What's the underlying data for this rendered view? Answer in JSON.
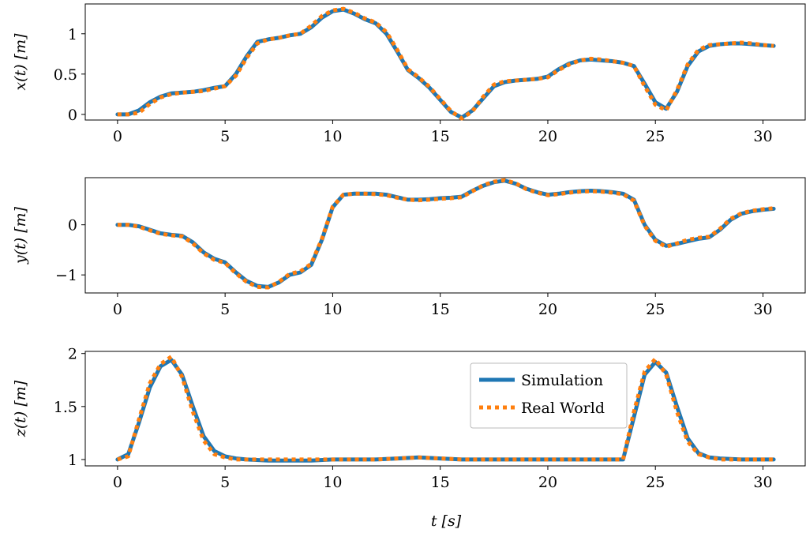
{
  "chart_data": [
    {
      "type": "line",
      "ylabel": "x(t) [m]",
      "xlim": [
        -1.5,
        32
      ],
      "ylim": [
        -0.07,
        1.37
      ],
      "xticks": [
        "0",
        "5",
        "10",
        "15",
        "20",
        "25",
        "30"
      ],
      "yticks": [
        "0",
        "0.5",
        "1"
      ],
      "series": [
        {
          "name": "Simulation",
          "color": "#1f77b4",
          "x": [
            0,
            0.5,
            1,
            1.5,
            2,
            2.5,
            3,
            3.5,
            4,
            4.5,
            5,
            5.5,
            6,
            6.5,
            7,
            7.5,
            8,
            8.5,
            9,
            9.5,
            10,
            10.5,
            11,
            11.5,
            12,
            12.5,
            13,
            13.5,
            14,
            14.5,
            15,
            15.5,
            16,
            16.5,
            17,
            17.5,
            18,
            18.5,
            19,
            19.5,
            20,
            20.5,
            21,
            21.5,
            22,
            22.5,
            23,
            23.5,
            24,
            24.5,
            25,
            25.5,
            26,
            26.5,
            27,
            27.5,
            28,
            28.5,
            29,
            29.5,
            30,
            30.5
          ],
          "values": [
            0,
            0.0,
            0.05,
            0.15,
            0.22,
            0.26,
            0.27,
            0.28,
            0.3,
            0.33,
            0.35,
            0.5,
            0.72,
            0.9,
            0.93,
            0.95,
            0.98,
            1.0,
            1.08,
            1.2,
            1.28,
            1.3,
            1.25,
            1.18,
            1.13,
            1.0,
            0.78,
            0.55,
            0.45,
            0.33,
            0.18,
            0.03,
            -0.04,
            0.05,
            0.2,
            0.35,
            0.4,
            0.42,
            0.43,
            0.44,
            0.47,
            0.56,
            0.63,
            0.67,
            0.68,
            0.67,
            0.66,
            0.64,
            0.6,
            0.38,
            0.15,
            0.07,
            0.28,
            0.6,
            0.78,
            0.85,
            0.87,
            0.88,
            0.88,
            0.87,
            0.86,
            0.85
          ]
        },
        {
          "name": "Real World",
          "color": "#ff7f0e",
          "x": [
            0,
            0.5,
            1,
            1.5,
            2,
            2.5,
            3,
            3.5,
            4,
            4.5,
            5,
            5.5,
            6,
            6.5,
            7,
            7.5,
            8,
            8.5,
            9,
            9.5,
            10,
            10.5,
            11,
            11.5,
            12,
            12.5,
            13,
            13.5,
            14,
            14.5,
            15,
            15.5,
            16,
            16.5,
            17,
            17.5,
            18,
            18.5,
            19,
            19.5,
            20,
            20.5,
            21,
            21.5,
            22,
            22.5,
            23,
            23.5,
            24,
            24.5,
            25,
            25.5,
            26,
            26.5,
            27,
            27.5,
            28,
            28.5,
            29,
            29.5,
            30,
            30.5
          ],
          "values": [
            0,
            0.0,
            0.02,
            0.13,
            0.21,
            0.25,
            0.27,
            0.28,
            0.29,
            0.32,
            0.35,
            0.48,
            0.7,
            0.88,
            0.93,
            0.95,
            0.98,
            1.0,
            1.1,
            1.22,
            1.29,
            1.31,
            1.26,
            1.19,
            1.14,
            1.02,
            0.8,
            0.56,
            0.46,
            0.34,
            0.19,
            0.04,
            -0.05,
            0.04,
            0.22,
            0.37,
            0.41,
            0.42,
            0.43,
            0.44,
            0.46,
            0.55,
            0.62,
            0.67,
            0.69,
            0.68,
            0.66,
            0.64,
            0.6,
            0.35,
            0.12,
            0.05,
            0.3,
            0.62,
            0.8,
            0.86,
            0.87,
            0.88,
            0.89,
            0.88,
            0.86,
            0.85
          ]
        }
      ]
    },
    {
      "type": "line",
      "ylabel": "y(t) [m]",
      "xlim": [
        -1.5,
        32
      ],
      "ylim": [
        -1.36,
        0.94
      ],
      "xticks": [
        "0",
        "5",
        "10",
        "15",
        "20",
        "25",
        "30"
      ],
      "yticks": [
        "−1",
        "0"
      ],
      "yticks_values": [
        -1,
        0
      ],
      "series": [
        {
          "name": "Simulation",
          "color": "#1f77b4",
          "x": [
            0,
            0.5,
            1,
            1.5,
            2,
            2.5,
            3,
            3.5,
            4,
            4.5,
            5,
            5.5,
            6,
            6.5,
            7,
            7.5,
            8,
            8.5,
            9,
            9.5,
            10,
            10.5,
            11,
            11.5,
            12,
            12.5,
            13,
            13.5,
            14,
            14.5,
            15,
            15.5,
            16,
            16.5,
            17,
            17.5,
            18,
            18.5,
            19,
            19.5,
            20,
            20.5,
            21,
            21.5,
            22,
            22.5,
            23,
            23.5,
            24,
            24.5,
            25,
            25.5,
            26,
            26.5,
            27,
            27.5,
            28,
            28.5,
            29,
            29.5,
            30,
            30.5
          ],
          "values": [
            0,
            0.0,
            -0.03,
            -0.1,
            -0.17,
            -0.2,
            -0.22,
            -0.35,
            -0.55,
            -0.68,
            -0.75,
            -0.95,
            -1.12,
            -1.22,
            -1.24,
            -1.15,
            -1.0,
            -0.95,
            -0.8,
            -0.3,
            0.35,
            0.6,
            0.62,
            0.62,
            0.62,
            0.6,
            0.55,
            0.5,
            0.5,
            0.51,
            0.53,
            0.54,
            0.56,
            0.68,
            0.78,
            0.85,
            0.88,
            0.82,
            0.72,
            0.65,
            0.6,
            0.62,
            0.65,
            0.67,
            0.68,
            0.67,
            0.65,
            0.62,
            0.5,
            0.0,
            -0.3,
            -0.42,
            -0.38,
            -0.33,
            -0.28,
            -0.25,
            -0.1,
            0.1,
            0.22,
            0.27,
            0.3,
            0.32
          ]
        },
        {
          "name": "Real World",
          "color": "#ff7f0e",
          "x": [
            0,
            0.5,
            1,
            1.5,
            2,
            2.5,
            3,
            3.5,
            4,
            4.5,
            5,
            5.5,
            6,
            6.5,
            7,
            7.5,
            8,
            8.5,
            9,
            9.5,
            10,
            10.5,
            11,
            11.5,
            12,
            12.5,
            13,
            13.5,
            14,
            14.5,
            15,
            15.5,
            16,
            16.5,
            17,
            17.5,
            18,
            18.5,
            19,
            19.5,
            20,
            20.5,
            21,
            21.5,
            22,
            22.5,
            23,
            23.5,
            24,
            24.5,
            25,
            25.5,
            26,
            26.5,
            27,
            27.5,
            28,
            28.5,
            29,
            29.5,
            30,
            30.5
          ],
          "values": [
            0,
            0.0,
            -0.04,
            -0.11,
            -0.18,
            -0.21,
            -0.23,
            -0.37,
            -0.57,
            -0.7,
            -0.76,
            -0.97,
            -1.14,
            -1.24,
            -1.25,
            -1.14,
            -0.98,
            -0.93,
            -0.78,
            -0.28,
            0.36,
            0.6,
            0.62,
            0.62,
            0.61,
            0.59,
            0.54,
            0.5,
            0.49,
            0.5,
            0.52,
            0.53,
            0.55,
            0.67,
            0.79,
            0.86,
            0.89,
            0.83,
            0.71,
            0.64,
            0.59,
            0.61,
            0.64,
            0.66,
            0.67,
            0.66,
            0.64,
            0.61,
            0.48,
            -0.02,
            -0.32,
            -0.44,
            -0.37,
            -0.3,
            -0.26,
            -0.24,
            -0.08,
            0.12,
            0.23,
            0.28,
            0.31,
            0.33
          ]
        }
      ]
    },
    {
      "type": "line",
      "ylabel": "z(t) [m]",
      "xlabel": "t [s]",
      "xlim": [
        -1.5,
        32
      ],
      "ylim": [
        0.94,
        2.02
      ],
      "xticks": [
        "0",
        "5",
        "10",
        "15",
        "20",
        "25",
        "30"
      ],
      "yticks": [
        "1",
        "1.5",
        "2"
      ],
      "legend": {
        "position": "upper-right",
        "entries": [
          "Simulation",
          "Real World"
        ]
      },
      "series": [
        {
          "name": "Simulation",
          "color": "#1f77b4",
          "x": [
            0,
            0.5,
            1,
            1.5,
            2,
            2.5,
            3,
            3.5,
            4,
            4.5,
            5,
            5.5,
            6,
            7,
            8,
            9,
            10,
            11,
            12,
            13,
            14,
            15,
            16,
            17,
            18,
            19,
            20,
            21,
            22,
            23,
            23.5,
            24,
            24.5,
            25,
            25.5,
            26,
            26.5,
            27,
            27.5,
            28,
            29,
            30,
            30.5
          ],
          "values": [
            1.0,
            1.05,
            1.35,
            1.68,
            1.88,
            1.94,
            1.8,
            1.5,
            1.22,
            1.08,
            1.03,
            1.01,
            1.0,
            0.99,
            0.99,
            0.99,
            1.0,
            1.0,
            1.0,
            1.01,
            1.02,
            1.01,
            1.0,
            1.0,
            1.0,
            1.0,
            1.0,
            1.0,
            1.0,
            1.0,
            1.0,
            1.4,
            1.8,
            1.92,
            1.82,
            1.5,
            1.2,
            1.06,
            1.02,
            1.01,
            1.0,
            1.0,
            1.0
          ]
        },
        {
          "name": "Real World",
          "color": "#ff7f0e",
          "x": [
            0,
            0.5,
            1,
            1.5,
            2,
            2.5,
            3,
            3.5,
            4,
            4.5,
            5,
            5.5,
            6,
            7,
            8,
            9,
            10,
            11,
            12,
            13,
            14,
            15,
            16,
            17,
            18,
            19,
            20,
            21,
            22,
            23,
            23.5,
            24,
            24.5,
            25,
            25.5,
            26,
            26.5,
            27,
            27.5,
            28,
            29,
            30,
            30.5
          ],
          "values": [
            1.0,
            1.03,
            1.38,
            1.72,
            1.9,
            1.97,
            1.78,
            1.45,
            1.18,
            1.05,
            1.02,
            1.0,
            1.0,
            1.0,
            1.0,
            1.0,
            1.0,
            1.0,
            1.0,
            1.01,
            1.02,
            1.01,
            1.0,
            1.0,
            1.0,
            1.0,
            1.0,
            1.0,
            1.0,
            1.0,
            1.0,
            1.45,
            1.83,
            1.95,
            1.8,
            1.45,
            1.17,
            1.05,
            1.02,
            1.0,
            1.0,
            1.0,
            1.0
          ]
        }
      ]
    }
  ]
}
